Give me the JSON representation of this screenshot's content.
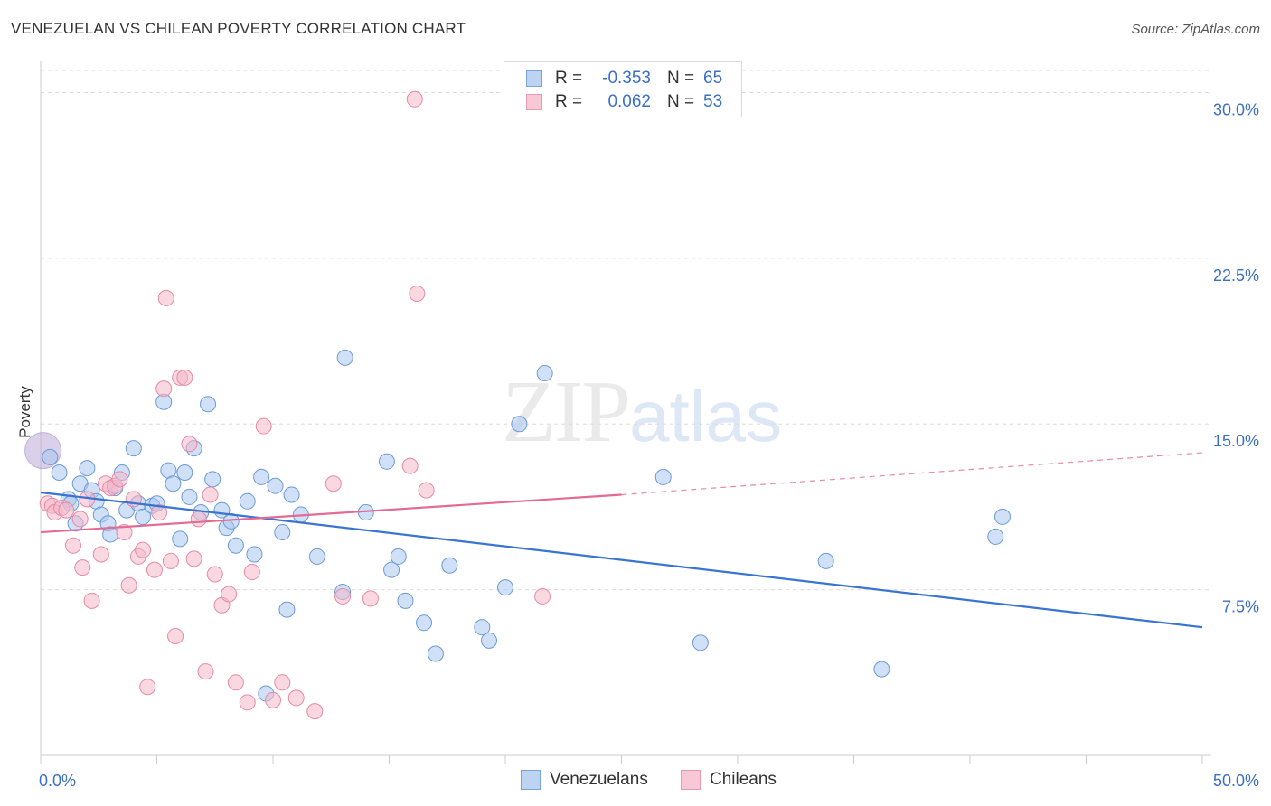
{
  "title": "VENEZUELAN VS CHILEAN POVERTY CORRELATION CHART",
  "source": "Source: ZipAtlas.com",
  "watermark": {
    "zip": "ZIP",
    "atlas": "atlas"
  },
  "legend": {
    "rows": [
      {
        "r_label": "R =",
        "r_value": "-0.353",
        "n_label": "N =",
        "n_value": "65"
      },
      {
        "r_label": "R =",
        "r_value": "0.062",
        "n_label": "N =",
        "n_value": "53"
      }
    ]
  },
  "bottom_legend": [
    "Venezuelans",
    "Chileans"
  ],
  "colors": {
    "venezuelans_fill": "#a9c6ee",
    "venezuelans_stroke": "#6d9ad6",
    "venezuelans_line": "#3a74d1",
    "chileans_fill": "#f4b8ca",
    "chileans_stroke": "#e68aa6",
    "chileans_line": "#e36b93",
    "tick_label": "#3b6fc4",
    "grid": "#dcdcdc"
  },
  "chart_data": {
    "type": "scatter",
    "title": "VENEZUELAN VS CHILEAN POVERTY CORRELATION CHART",
    "xlabel": "",
    "ylabel": "Poverty",
    "xlim": [
      0,
      50
    ],
    "ylim": [
      0,
      31
    ],
    "x_tick_labels": [
      "0.0%",
      "50.0%"
    ],
    "y_ticks": [
      7.5,
      15.0,
      22.5,
      30.0
    ],
    "y_tick_labels": [
      "7.5%",
      "15.0%",
      "22.5%",
      "30.0%"
    ],
    "grid": "horizontal dashed",
    "legend_position": "top-center",
    "series": [
      {
        "name": "Venezuelans",
        "r": -0.353,
        "n": 65,
        "trend": {
          "x": [
            0,
            50
          ],
          "y": [
            11.9,
            5.8
          ]
        },
        "points": [
          [
            0.4,
            13.5
          ],
          [
            0.8,
            12.8
          ],
          [
            1.2,
            11.6
          ],
          [
            1.3,
            11.4
          ],
          [
            1.5,
            10.5
          ],
          [
            1.7,
            12.3
          ],
          [
            2.0,
            13.0
          ],
          [
            2.2,
            12.0
          ],
          [
            2.4,
            11.5
          ],
          [
            2.6,
            10.9
          ],
          [
            2.9,
            10.5
          ],
          [
            3.0,
            10.0
          ],
          [
            3.2,
            12.1
          ],
          [
            3.5,
            12.8
          ],
          [
            3.7,
            11.1
          ],
          [
            4.0,
            13.9
          ],
          [
            4.2,
            11.4
          ],
          [
            4.4,
            10.8
          ],
          [
            4.8,
            11.3
          ],
          [
            5.0,
            11.4
          ],
          [
            5.3,
            16.0
          ],
          [
            5.5,
            12.9
          ],
          [
            5.7,
            12.3
          ],
          [
            6.0,
            9.8
          ],
          [
            6.2,
            12.8
          ],
          [
            6.4,
            11.7
          ],
          [
            6.6,
            13.9
          ],
          [
            6.9,
            11.0
          ],
          [
            7.2,
            15.9
          ],
          [
            7.4,
            12.5
          ],
          [
            7.8,
            11.1
          ],
          [
            8.0,
            10.3
          ],
          [
            8.2,
            10.6
          ],
          [
            8.4,
            9.5
          ],
          [
            8.9,
            11.5
          ],
          [
            9.2,
            9.1
          ],
          [
            9.5,
            12.6
          ],
          [
            9.7,
            2.8
          ],
          [
            10.1,
            12.2
          ],
          [
            10.4,
            10.1
          ],
          [
            10.6,
            6.6
          ],
          [
            10.8,
            11.8
          ],
          [
            11.2,
            10.9
          ],
          [
            11.9,
            9.0
          ],
          [
            13.0,
            7.4
          ],
          [
            13.1,
            18.0
          ],
          [
            14.0,
            11.0
          ],
          [
            14.9,
            13.3
          ],
          [
            15.1,
            8.4
          ],
          [
            15.4,
            9.0
          ],
          [
            15.7,
            7.0
          ],
          [
            16.5,
            6.0
          ],
          [
            17.0,
            4.6
          ],
          [
            17.6,
            8.6
          ],
          [
            19.0,
            5.8
          ],
          [
            19.3,
            5.2
          ],
          [
            20.0,
            7.6
          ],
          [
            20.6,
            15.0
          ],
          [
            21.7,
            17.3
          ],
          [
            26.8,
            12.6
          ],
          [
            28.4,
            5.1
          ],
          [
            33.8,
            8.8
          ],
          [
            36.2,
            3.9
          ],
          [
            41.1,
            9.9
          ],
          [
            41.4,
            10.8
          ]
        ]
      },
      {
        "name": "Chileans",
        "r": 0.062,
        "n": 53,
        "trend": {
          "x": [
            0,
            25
          ],
          "y": [
            10.1,
            11.8
          ],
          "dashed_to": {
            "x": 50,
            "y": 13.7
          }
        },
        "points": [
          [
            0.3,
            11.4
          ],
          [
            0.5,
            11.3
          ],
          [
            0.6,
            11.0
          ],
          [
            0.9,
            11.2
          ],
          [
            1.1,
            11.1
          ],
          [
            1.4,
            9.5
          ],
          [
            1.7,
            10.7
          ],
          [
            1.8,
            8.5
          ],
          [
            2.0,
            11.6
          ],
          [
            2.2,
            7.0
          ],
          [
            2.6,
            9.1
          ],
          [
            2.8,
            12.3
          ],
          [
            3.0,
            12.1
          ],
          [
            3.2,
            12.2
          ],
          [
            3.4,
            12.5
          ],
          [
            3.6,
            10.1
          ],
          [
            3.8,
            7.7
          ],
          [
            4.0,
            11.6
          ],
          [
            4.2,
            9.0
          ],
          [
            4.4,
            9.3
          ],
          [
            4.6,
            3.1
          ],
          [
            4.9,
            8.4
          ],
          [
            5.1,
            11.0
          ],
          [
            5.3,
            16.6
          ],
          [
            5.6,
            8.8
          ],
          [
            5.8,
            5.4
          ],
          [
            6.0,
            17.1
          ],
          [
            6.2,
            17.1
          ],
          [
            6.4,
            14.1
          ],
          [
            6.6,
            8.9
          ],
          [
            6.8,
            10.7
          ],
          [
            7.1,
            3.8
          ],
          [
            7.3,
            11.8
          ],
          [
            7.5,
            8.2
          ],
          [
            7.8,
            6.8
          ],
          [
            8.1,
            7.3
          ],
          [
            8.4,
            3.3
          ],
          [
            8.9,
            2.4
          ],
          [
            9.1,
            8.3
          ],
          [
            9.6,
            14.9
          ],
          [
            10.0,
            2.5
          ],
          [
            10.4,
            3.3
          ],
          [
            11.0,
            2.6
          ],
          [
            11.8,
            2.0
          ],
          [
            12.6,
            12.3
          ],
          [
            13.0,
            7.2
          ],
          [
            14.2,
            7.1
          ],
          [
            15.9,
            13.1
          ],
          [
            16.2,
            20.9
          ],
          [
            16.1,
            29.7
          ],
          [
            16.6,
            12.0
          ],
          [
            21.6,
            7.2
          ],
          [
            5.4,
            20.7
          ]
        ]
      }
    ],
    "big_point": {
      "x": 0.1,
      "y": 13.8,
      "note": "large overlap marker"
    }
  }
}
